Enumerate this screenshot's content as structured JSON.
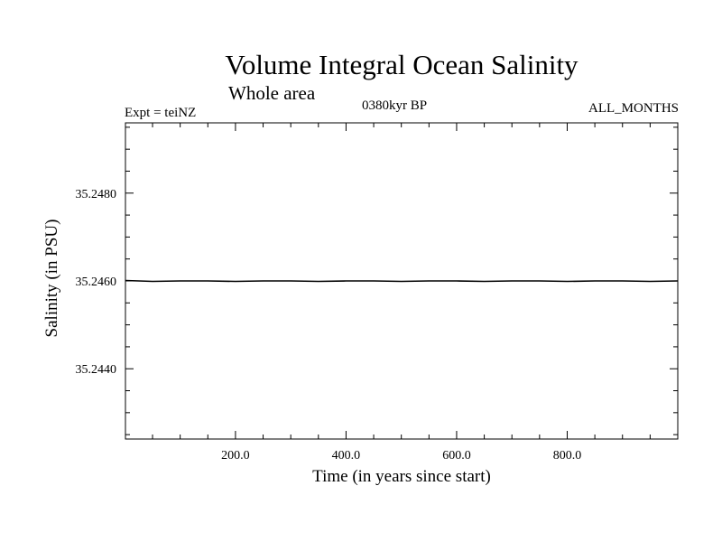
{
  "header": {
    "title": "Volume Integral Ocean Salinity",
    "subtitle": "Whole area",
    "experiment": "Expt = teiNZ",
    "period": "0380kyr BP",
    "months": "ALL_MONTHS"
  },
  "chart_data": {
    "type": "line",
    "title": "Volume Integral Ocean Salinity",
    "subtitle": "Whole area",
    "xlabel": "Time (in years since start)",
    "ylabel": "Salinity (in PSU)",
    "xlim": [
      1,
      1000
    ],
    "ylim": [
      35.2424,
      35.2496
    ],
    "xticks": [
      200,
      400,
      600,
      800
    ],
    "xtick_labels": [
      "200.0",
      "400.0",
      "600.0",
      "800.0"
    ],
    "yticks": [
      35.244,
      35.246,
      35.248
    ],
    "ytick_labels": [
      "35.2440",
      "35.2460",
      "35.2480"
    ],
    "grid": false,
    "series": [
      {
        "color": "#000000",
        "x": [
          1,
          50,
          100,
          150,
          200,
          250,
          300,
          350,
          400,
          450,
          500,
          550,
          600,
          650,
          700,
          750,
          800,
          850,
          900,
          950,
          1000
        ],
        "y": [
          35.24601,
          35.24599,
          35.246,
          35.246,
          35.24599,
          35.246,
          35.246,
          35.24599,
          35.246,
          35.246,
          35.24599,
          35.246,
          35.246,
          35.24599,
          35.246,
          35.246,
          35.24599,
          35.246,
          35.246,
          35.24599,
          35.246
        ]
      }
    ]
  }
}
